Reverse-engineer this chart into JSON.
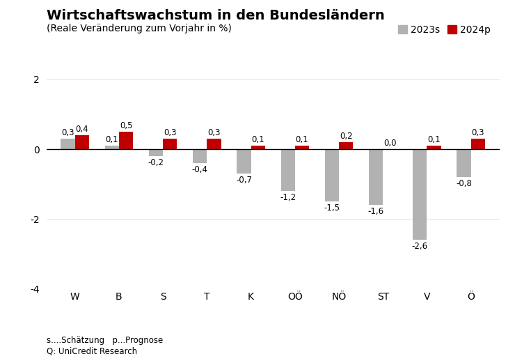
{
  "title": "Wirtschaftswachstum in den Bundesländern",
  "subtitle": "(Reale Veränderung zum Vorjahr in %)",
  "categories": [
    "W",
    "B",
    "S",
    "T",
    "K",
    "OÖ",
    "NÖ",
    "ST",
    "V",
    "Ö"
  ],
  "values_2023s": [
    0.3,
    0.1,
    -0.2,
    -0.4,
    -0.7,
    -1.2,
    -1.5,
    -1.6,
    -2.6,
    -0.8
  ],
  "values_2024p": [
    0.4,
    0.5,
    0.3,
    0.3,
    0.1,
    0.1,
    0.2,
    0.0,
    0.1,
    0.3
  ],
  "color_2023s": "#b2b2b2",
  "color_2024p": "#c00000",
  "ylim": [
    -4,
    2
  ],
  "yticks": [
    -4,
    -2,
    0,
    2
  ],
  "legend_2023s": "2023s",
  "legend_2024p": "2024p",
  "footnote_line1": "s....Schätzung   p...Prognose",
  "footnote_line2": "Q: UniCredit Research",
  "background_color": "#ffffff",
  "bar_width": 0.32,
  "title_fontsize": 14,
  "subtitle_fontsize": 10,
  "axis_fontsize": 10,
  "label_fontsize": 8.5
}
